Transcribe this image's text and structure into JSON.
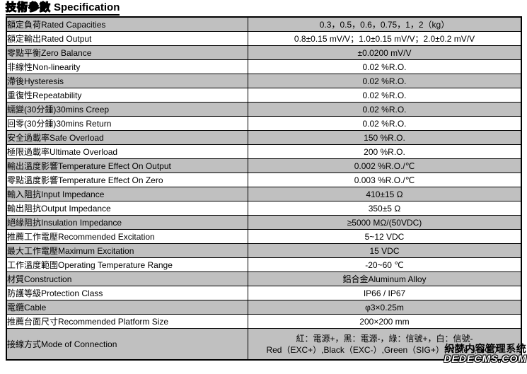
{
  "page": {
    "title_zh": "技術參數",
    "title_en": "Specification"
  },
  "table": {
    "rows": [
      {
        "label": "額定負荷Rated Capacities",
        "value": "0.3，0.5，0.6，0.75，1，2（kg）",
        "shaded": true
      },
      {
        "label": "額定輸出Rated Output",
        "value": "0.8±0.15 mV/V；1.0±0.15 mV/V；2.0±0.2 mV/V",
        "shaded": false
      },
      {
        "label": "零點平衡Zero Balance",
        "value": "±0.0200 mV/V",
        "shaded": true
      },
      {
        "label": "非線性Non-linearity",
        "value": "0.02 %R.O.",
        "shaded": false
      },
      {
        "label": "滯後Hysteresis",
        "value": "0.02 %R.O.",
        "shaded": true
      },
      {
        "label": "重復性Repeatability",
        "value": "0.02 %R.O.",
        "shaded": false
      },
      {
        "label": "蠕變(30分鍾)30mins Creep",
        "value": "0.02 %R.O.",
        "shaded": true
      },
      {
        "label": "回零(30分鍾)30mins Return",
        "value": "0.02 %R.O.",
        "shaded": false
      },
      {
        "label": "安全過載率Safe Overload",
        "value": "150 %R.O.",
        "shaded": true
      },
      {
        "label": "極限過載率Ultimate Overload",
        "value": "200 %R.O.",
        "shaded": false
      },
      {
        "label": "輸出溫度影響Temperature Effect On Output",
        "value": "0.002 %R.O./℃",
        "shaded": true
      },
      {
        "label": "零點溫度影響Temperature Effect On Zero",
        "value": "0.003 %R.O./℃",
        "shaded": false
      },
      {
        "label": "輸入阻抗Input Impedance",
        "value": "410±15 Ω",
        "shaded": true
      },
      {
        "label": "輸出阻抗Output Impedance",
        "value": "350±5 Ω",
        "shaded": false
      },
      {
        "label": "絕緣阻抗Insulation Impedance",
        "value": "≥5000 MΩ/(50VDC)",
        "shaded": true
      },
      {
        "label": "推薦工作電壓Recommended Excitation",
        "value": "5~12 VDC",
        "shaded": false
      },
      {
        "label": "最大工作電壓Maximum Excitation",
        "value": "15 VDC",
        "shaded": true
      },
      {
        "label": "工作溫度範圍Operating Temperature Range",
        "value": "-20~60 ℃",
        "shaded": false
      },
      {
        "label": "材質Construction",
        "value": "鋁合金Aluminum Alloy",
        "shaded": true
      },
      {
        "label": "防護等級Protection Class",
        "value": "IP66 / IP67",
        "shaded": false
      },
      {
        "label": "電纜Cable",
        "value": "φ3×0.25m",
        "shaded": true
      },
      {
        "label": "推薦台面尺寸Recommended Platform Size",
        "value": "200×200 mm",
        "shaded": false
      },
      {
        "label": "接線方式Mode of Connection",
        "value_line1": "紅：電源+，黑：電源-，綠：信號+，白：信號-",
        "value_line2": "Red（EXC+）,Black（EXC-）,Green（SIG+）,White（SIG-）",
        "shaded": true,
        "tall": true
      }
    ]
  },
  "watermark": {
    "line1": "织梦内容管理系统",
    "line2": "DEDECMS.COM"
  },
  "colors": {
    "shaded_row": "#c0c0c0",
    "border": "#000000",
    "text": "#000000",
    "background": "#ffffff"
  }
}
